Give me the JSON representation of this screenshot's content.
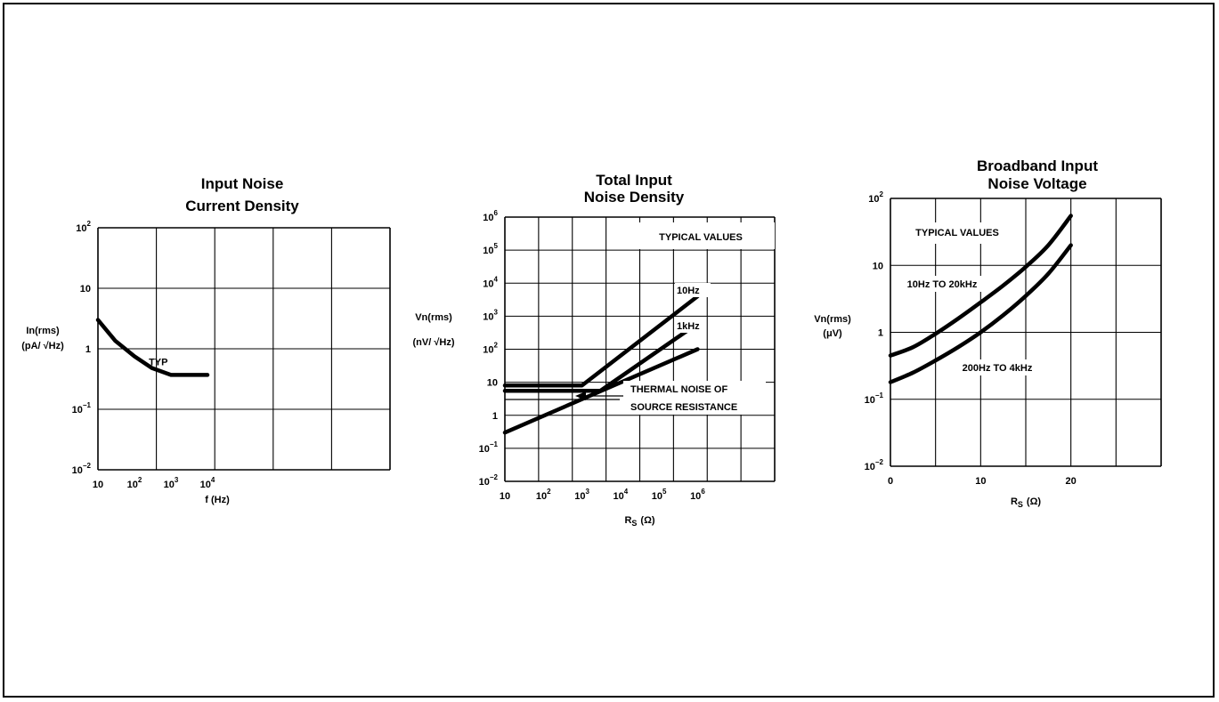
{
  "chart_data": [
    {
      "type": "line",
      "title": [
        "Input Noise",
        "Current Density"
      ],
      "xlabel": "f (Hz)",
      "ylabel": [
        "In(rms)",
        "(pA/ √Hz)"
      ],
      "x_scale": "log",
      "y_scale": "log",
      "xlim": [
        10,
        1000000000
      ],
      "ylim": [
        0.01,
        100
      ],
      "x_ticks": [
        {
          "base": "10",
          "exp": "",
          "value": 10
        },
        {
          "base": "10",
          "exp": "2",
          "value": 100
        },
        {
          "base": "10",
          "exp": "3",
          "value": 1000
        },
        {
          "base": "10",
          "exp": "4",
          "value": 10000
        }
      ],
      "y_ticks": [
        {
          "base": "10",
          "exp": "2",
          "value": 100
        },
        {
          "base": "10",
          "exp": "",
          "value": 10
        },
        {
          "base": "1",
          "exp": "",
          "value": 1
        },
        {
          "base": "10",
          "exp": "−1",
          "value": 0.1
        },
        {
          "base": "10",
          "exp": "−2",
          "value": 0.01
        }
      ],
      "grid": true,
      "series": [
        {
          "name": "TYP",
          "x": [
            10,
            30,
            100,
            300,
            1000,
            3000,
            10000
          ],
          "y": [
            3.0,
            1.35,
            0.75,
            0.48,
            0.37,
            0.37,
            0.37
          ]
        }
      ],
      "annotations": [
        {
          "text": "TYP",
          "x": 450,
          "y": 0.5
        }
      ]
    },
    {
      "type": "line",
      "title": [
        "Total Input",
        "Noise Density"
      ],
      "xlabel": "R",
      "xlabel_sub": "S",
      "xlabel_unit": "(Ω)",
      "ylabel": [
        "Vn(rms)",
        "(nV/ √Hz)"
      ],
      "x_scale": "log",
      "y_scale": "log",
      "xlim": [
        10,
        100000000
      ],
      "ylim": [
        0.01,
        1000000
      ],
      "x_ticks": [
        {
          "base": "10",
          "exp": "",
          "value": 10
        },
        {
          "base": "10",
          "exp": "2",
          "value": 100
        },
        {
          "base": "10",
          "exp": "3",
          "value": 1000
        },
        {
          "base": "10",
          "exp": "4",
          "value": 10000
        },
        {
          "base": "10",
          "exp": "5",
          "value": 100000
        },
        {
          "base": "10",
          "exp": "6",
          "value": 1000000
        }
      ],
      "y_ticks": [
        {
          "base": "10",
          "exp": "6",
          "value": 1000000
        },
        {
          "base": "10",
          "exp": "5",
          "value": 100000
        },
        {
          "base": "10",
          "exp": "4",
          "value": 10000
        },
        {
          "base": "10",
          "exp": "3",
          "value": 1000
        },
        {
          "base": "10",
          "exp": "2",
          "value": 100
        },
        {
          "base": "10",
          "exp": "",
          "value": 10
        },
        {
          "base": "1",
          "exp": "",
          "value": 1
        },
        {
          "base": "10",
          "exp": "−1",
          "value": 0.1
        },
        {
          "base": "10",
          "exp": "−2",
          "value": 0.01
        }
      ],
      "grid": true,
      "series": [
        {
          "name": "10Hz",
          "x": [
            10,
            1000,
            1000000
          ],
          "y": [
            8,
            8,
            4000
          ]
        },
        {
          "name": "1kHz",
          "x": [
            10,
            3000,
            1000000
          ],
          "y": [
            5.5,
            5.5,
            600
          ]
        },
        {
          "name": "THERMAL NOISE OF SOURCE RESISTANCE",
          "x": [
            10,
            1000000
          ],
          "y": [
            0.3,
            100
          ]
        }
      ],
      "annotations": [
        {
          "text": "TYPICAL VALUES"
        },
        {
          "text": "10Hz"
        },
        {
          "text": "1kHz"
        },
        {
          "text": "THERMAL NOISE OF"
        },
        {
          "text": "SOURCE RESISTANCE"
        }
      ]
    },
    {
      "type": "line",
      "title": [
        "Broadband Input",
        "Noise Voltage"
      ],
      "xlabel": "R",
      "xlabel_sub": "S",
      "xlabel_unit": "(Ω)",
      "ylabel": [
        "Vn(rms)",
        "(μV)"
      ],
      "x_scale": "linear",
      "y_scale": "log",
      "xlim": [
        0,
        30
      ],
      "ylim": [
        0.01,
        100
      ],
      "x_ticks": [
        {
          "base": "0",
          "exp": "",
          "value": 0
        },
        {
          "base": "10",
          "exp": "",
          "value": 10
        },
        {
          "base": "20",
          "exp": "",
          "value": 20
        }
      ],
      "y_ticks": [
        {
          "base": "10",
          "exp": "2",
          "value": 100
        },
        {
          "base": "10",
          "exp": "",
          "value": 10
        },
        {
          "base": "1",
          "exp": "",
          "value": 1
        },
        {
          "base": "10",
          "exp": "−1",
          "value": 0.1
        },
        {
          "base": "10",
          "exp": "−2",
          "value": 0.01
        }
      ],
      "grid": true,
      "series": [
        {
          "name": "10Hz TO 20kHz",
          "x": [
            0,
            2.5,
            5,
            7.5,
            10,
            12.5,
            15,
            17.5,
            20
          ],
          "y": [
            0.45,
            0.6,
            0.95,
            1.6,
            2.8,
            5.0,
            9.5,
            20,
            55
          ]
        },
        {
          "name": "200Hz TO 4kHz",
          "x": [
            0,
            2.5,
            5,
            7.5,
            10,
            12.5,
            15,
            17.5,
            20
          ],
          "y": [
            0.18,
            0.25,
            0.38,
            0.6,
            1.0,
            1.8,
            3.5,
            7.5,
            20
          ]
        }
      ],
      "annotations": [
        {
          "text": "TYPICAL VALUES"
        },
        {
          "text": "10Hz TO 20kHz"
        },
        {
          "text": "200Hz TO 4kHz"
        }
      ]
    }
  ]
}
